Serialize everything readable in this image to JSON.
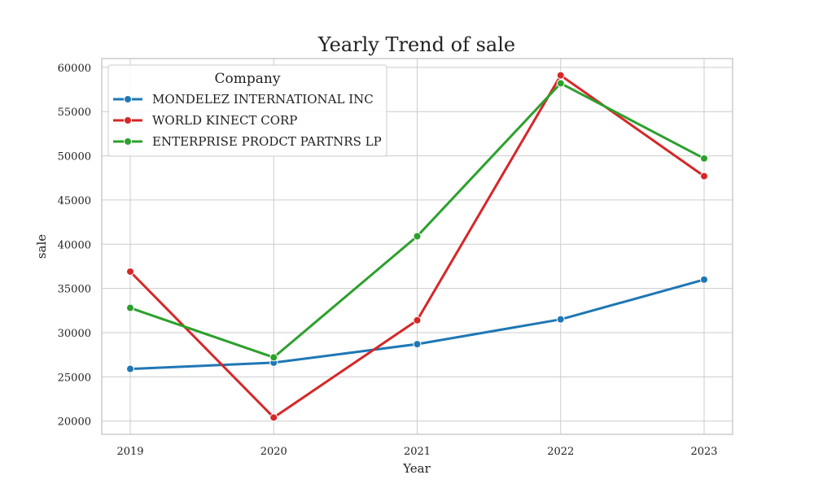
{
  "chart_data": {
    "type": "line",
    "title": "Yearly Trend of sale",
    "xlabel": "Year",
    "ylabel": "sale",
    "categories": [
      "2019",
      "2020",
      "2021",
      "2022",
      "2023"
    ],
    "yticks": [
      "20000",
      "25000",
      "30000",
      "35000",
      "40000",
      "45000",
      "50000",
      "55000",
      "60000"
    ],
    "ylim": [
      18500,
      61000
    ],
    "grid": true,
    "legend": {
      "title": "Company",
      "placement": "top-left"
    },
    "series": [
      {
        "name": "MONDELEZ INTERNATIONAL INC",
        "color": "#1f77b4",
        "values": [
          25900,
          26600,
          28700,
          31500,
          36000
        ]
      },
      {
        "name": "WORLD KINECT CORP",
        "color": "#d62728",
        "values": [
          36900,
          20400,
          31400,
          59100,
          47700
        ]
      },
      {
        "name": "ENTERPRISE PRODCT PARTNRS LP",
        "color": "#2ca02c",
        "values": [
          32800,
          27200,
          40900,
          58200,
          49700
        ]
      }
    ]
  }
}
